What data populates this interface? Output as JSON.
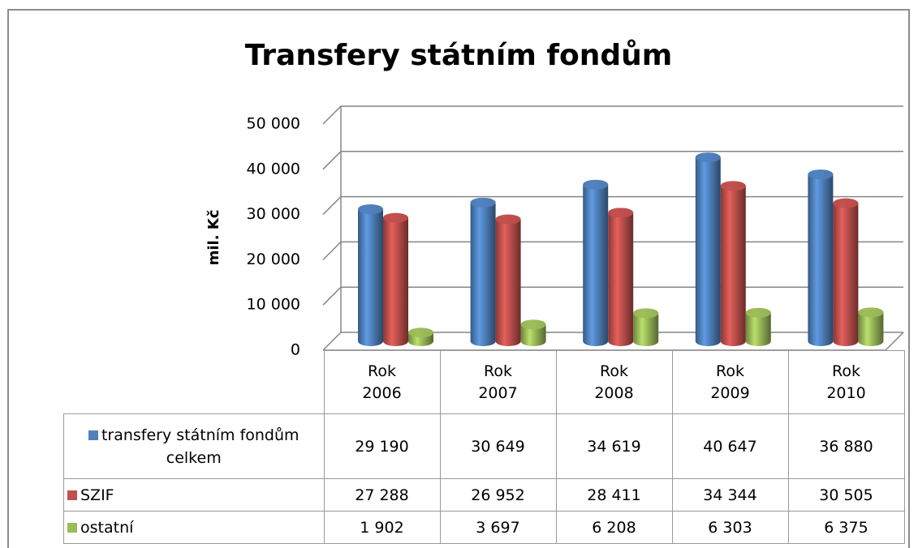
{
  "chart_data": {
    "type": "bar3d",
    "title": "Transfery státním fondům",
    "y_label": "mil. Kč",
    "categories": [
      "Rok 2006",
      "Rok 2007",
      "Rok 2008",
      "Rok 2009",
      "Rok 2010"
    ],
    "series": [
      {
        "name": "transfery státním fondům celkem",
        "color": "#4f81bd",
        "values": [
          29190,
          30649,
          34619,
          40647,
          36880
        ],
        "value_labels": [
          "29 190",
          "30 649",
          "34 619",
          "40 647",
          "36 880"
        ]
      },
      {
        "name": "SZIF",
        "color": "#c0504d",
        "values": [
          27288,
          26952,
          28411,
          34344,
          30505
        ],
        "value_labels": [
          "27 288",
          "26 952",
          "28 411",
          "34 344",
          "30 505"
        ]
      },
      {
        "name": "ostatní",
        "color": "#9bbb59",
        "values": [
          1902,
          3697,
          6208,
          6303,
          6375
        ],
        "value_labels": [
          "1 902",
          "3 697",
          "6 208",
          "6 303",
          "6 375"
        ]
      }
    ],
    "ylim": [
      0,
      50000
    ],
    "yticks": [
      0,
      {
        "value": 10000,
        "label": "10 000"
      },
      {
        "value": 20000,
        "label": "20 000"
      },
      {
        "value": 30000,
        "label": "30 000"
      },
      {
        "value": 40000,
        "label": "40 000"
      },
      {
        "value": 50000,
        "label": "50 000"
      }
    ],
    "grid": true
  }
}
